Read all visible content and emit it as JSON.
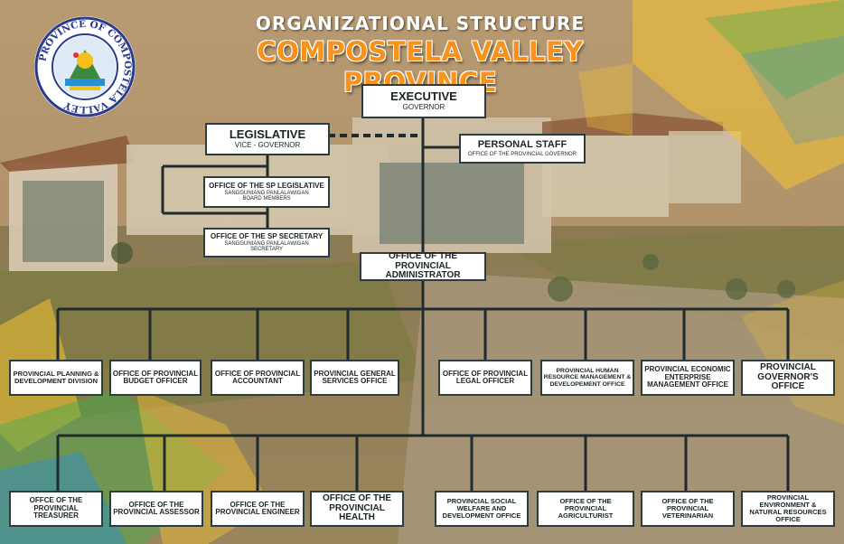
{
  "header": {
    "line1": "ORGANIZATIONAL STRUCTURE",
    "line2": "COMPOSTELA VALLEY PROVINCE"
  },
  "seal": {
    "text": "PROVINCE OF COMPOSTELA VALLEY"
  },
  "colors": {
    "title_orange": "#f7931d",
    "box_border": "#2c3c3f",
    "connector": "#1f2b2d",
    "ribbon_yellow": "#f4c232",
    "ribbon_green": "#3fae49",
    "ribbon_blue": "#2a8fd1"
  },
  "executive": {
    "title": "EXECUTIVE",
    "subtitle": "GOVERNOR"
  },
  "legislative": {
    "title": "LEGISLATIVE",
    "subtitle": "VICE - GOVERNOR"
  },
  "personal_staff": {
    "title": "PERSONAL STAFF",
    "subtitle": "OFFICE OF THE PROVINCIAL GOVERNOR"
  },
  "sp_legislative": {
    "title": "OFFICE OF THE SP LEGISLATIVE",
    "subtitle": "SANGGUNIANG PANLALAWIGAN BOARD MEMBERS"
  },
  "sp_secretary": {
    "title": "OFFICE OF THE SP SECRETARY",
    "subtitle": "SANGGUNIANG PANLALAWIGAN SECRETARY"
  },
  "administrator": {
    "title": "OFFICE OF THE PROVINCIAL ADMINISTRATOR"
  },
  "row1": [
    "PROVINCIAL PLANNING & DEVELOPMENT DIVISION",
    "OFFICE OF PROVINCIAL BUDGET OFFICER",
    "OFFICE OF PROVINCIAL ACCOUNTANT",
    "PROVINCIAL GENERAL SERVICES OFFICE",
    "OFFICE OF PROVINCIAL LEGAL OFFICER",
    "PROVINCIAL HUMAN RESOURCE MANAGEMENT & DEVELOPEMENT OFFICE",
    "PROVINCIAL ECONOMIC ENTERPRISE MANAGEMENT OFFICE",
    "PROVINCIAL GOVERNOR'S OFFICE"
  ],
  "row2": [
    "OFFCE OF THE PROVINCIAL TREASURER",
    "OFFICE OF THE PROVINCIAL ASSESSOR",
    "OFFICE OF THE PROVINCIAL ENGINEER",
    "OFFICE OF THE PROVINCIAL HEALTH",
    "PROVINCIAL SOCIAL WELFARE AND DEVELOPMENT OFFICE",
    "OFFICE OF THE PROVINCIAL AGRICULTURIST",
    "OFFICE OF THE PROVINCIAL VETERINARIAN",
    "PROVINCIAL ENVIRONMENT & NATURAL RESOURCES OFFICE"
  ]
}
